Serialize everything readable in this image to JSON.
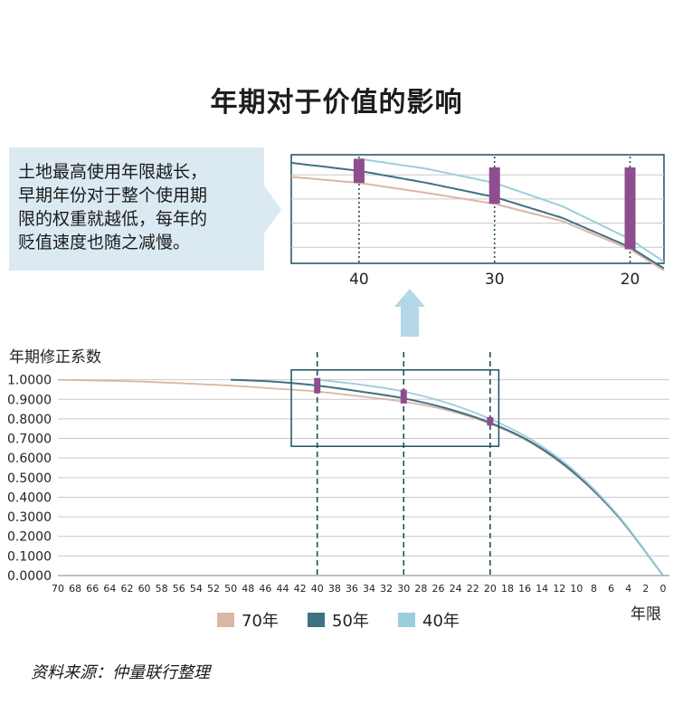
{
  "title": "年期对于价值的影响",
  "callout": {
    "lines": [
      "土地最高使用年限越长，",
      "早期年份对于整个使用期",
      "限的权重就越低，每年的",
      "贬值速度也随之减慢。"
    ]
  },
  "source": "资料来源：仲量联行整理",
  "colors": {
    "s70": "#d9b6a6",
    "s50": "#3e7182",
    "s40": "#9ccddb",
    "marker": "#8e4e8e",
    "box": "#1f4f5e",
    "arrow": "#b3d7e6"
  },
  "chart_data": [
    {
      "type": "line",
      "name": "main",
      "ylabel": "年期修正系数",
      "xlabel": "年限",
      "x_reversed": true,
      "xlim": [
        70,
        0
      ],
      "ylim": [
        0,
        1.1
      ],
      "yticks": [
        "0.0000",
        "0.1000",
        "0.2000",
        "0.3000",
        "0.4000",
        "0.5000",
        "0.6000",
        "0.7000",
        "0.8000",
        "0.9000",
        "1.0000"
      ],
      "xticks": [
        70,
        68,
        66,
        64,
        62,
        60,
        58,
        56,
        54,
        52,
        50,
        48,
        46,
        44,
        42,
        40,
        38,
        36,
        34,
        32,
        30,
        28,
        26,
        24,
        22,
        20,
        18,
        16,
        14,
        12,
        10,
        8,
        6,
        4,
        2,
        0
      ],
      "series": [
        {
          "name": "70年",
          "x": [
            70,
            60,
            50,
            45,
            40,
            35,
            30,
            25,
            20,
            15,
            10,
            5,
            0
          ],
          "values": [
            1.0,
            0.99,
            0.97,
            0.955,
            0.94,
            0.915,
            0.888,
            0.845,
            0.775,
            0.67,
            0.51,
            0.29,
            0.0
          ]
        },
        {
          "name": "50年",
          "x": [
            50,
            45,
            40,
            35,
            30,
            25,
            20,
            15,
            10,
            5,
            0
          ],
          "values": [
            1.0,
            0.99,
            0.97,
            0.94,
            0.905,
            0.853,
            0.78,
            0.675,
            0.515,
            0.293,
            0.0
          ]
        },
        {
          "name": "40年",
          "x": [
            40,
            35,
            30,
            25,
            20,
            15,
            10,
            5,
            0
          ],
          "values": [
            1.0,
            0.975,
            0.94,
            0.882,
            0.8,
            0.688,
            0.525,
            0.297,
            0.0
          ]
        }
      ],
      "markers": [
        {
          "x": 40,
          "y_low": 0.94,
          "y_high": 1.0
        },
        {
          "x": 30,
          "y_low": 0.888,
          "y_high": 0.94
        },
        {
          "x": 20,
          "y_low": 0.775,
          "y_high": 0.8
        }
      ],
      "highlight_box": {
        "x_range": [
          43,
          19
        ],
        "y_range": [
          0.66,
          1.05
        ]
      },
      "dashed_lines_x": [
        40,
        30,
        20
      ],
      "legend": [
        "70年",
        "50年",
        "40年"
      ]
    },
    {
      "type": "line",
      "name": "zoom",
      "xticks": [
        40,
        30,
        20
      ],
      "xlim": [
        45,
        17.5
      ],
      "ylim": [
        0.74,
        1.01
      ],
      "dotted_lines_x": [
        40,
        30,
        20
      ]
    }
  ]
}
